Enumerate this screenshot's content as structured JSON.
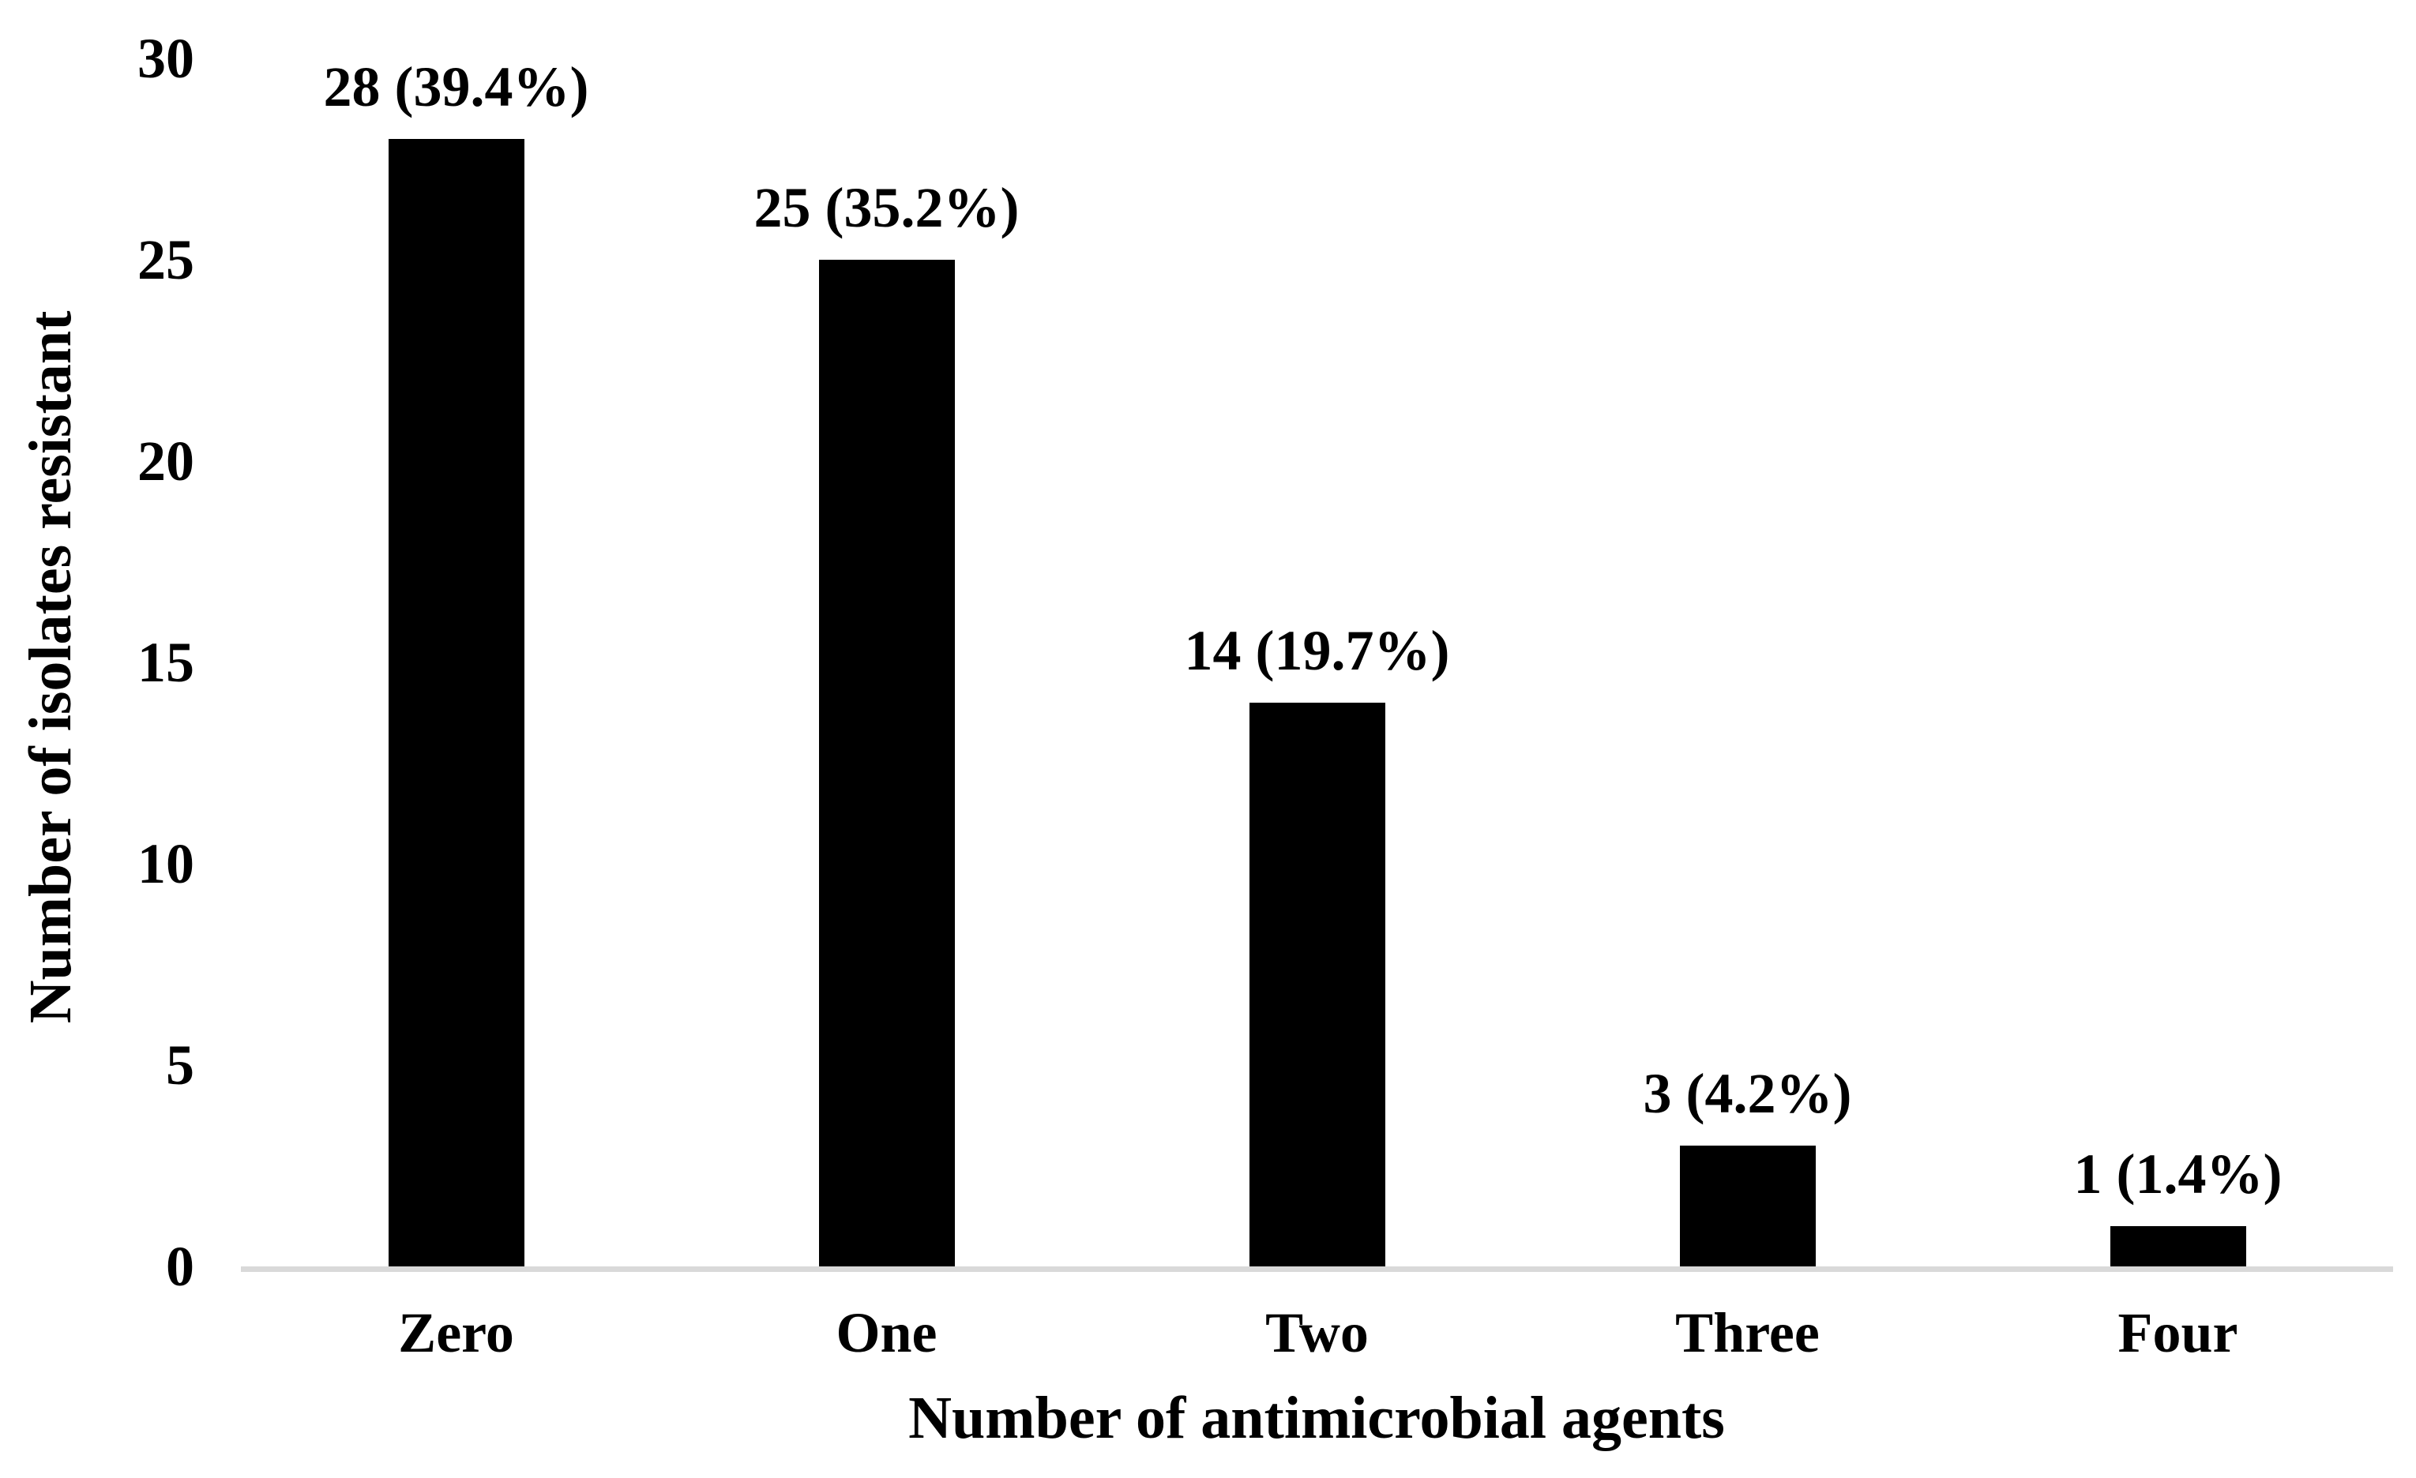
{
  "chart_data": {
    "type": "bar",
    "title": "",
    "categories": [
      "Zero",
      "One",
      "Two",
      "Three",
      "Four"
    ],
    "values": [
      28,
      25,
      14,
      3,
      1
    ],
    "data_labels": [
      "28 (39.4%)",
      "25 (35.2%)",
      "14 (19.7%)",
      "3 (4.2%)",
      "1 (1.4%)"
    ],
    "xlabel": "Number of antimicrobial agents",
    "ylabel": "Number of isolates resistant",
    "ylim": [
      0,
      30
    ],
    "yticks": [
      0,
      5,
      10,
      15,
      20,
      25,
      30
    ],
    "grid": false,
    "legend_position": "none",
    "bar_color": "#000000",
    "axis_line_color": "#d9d9d9",
    "text_color": "#000000",
    "background_color": "#ffffff"
  }
}
